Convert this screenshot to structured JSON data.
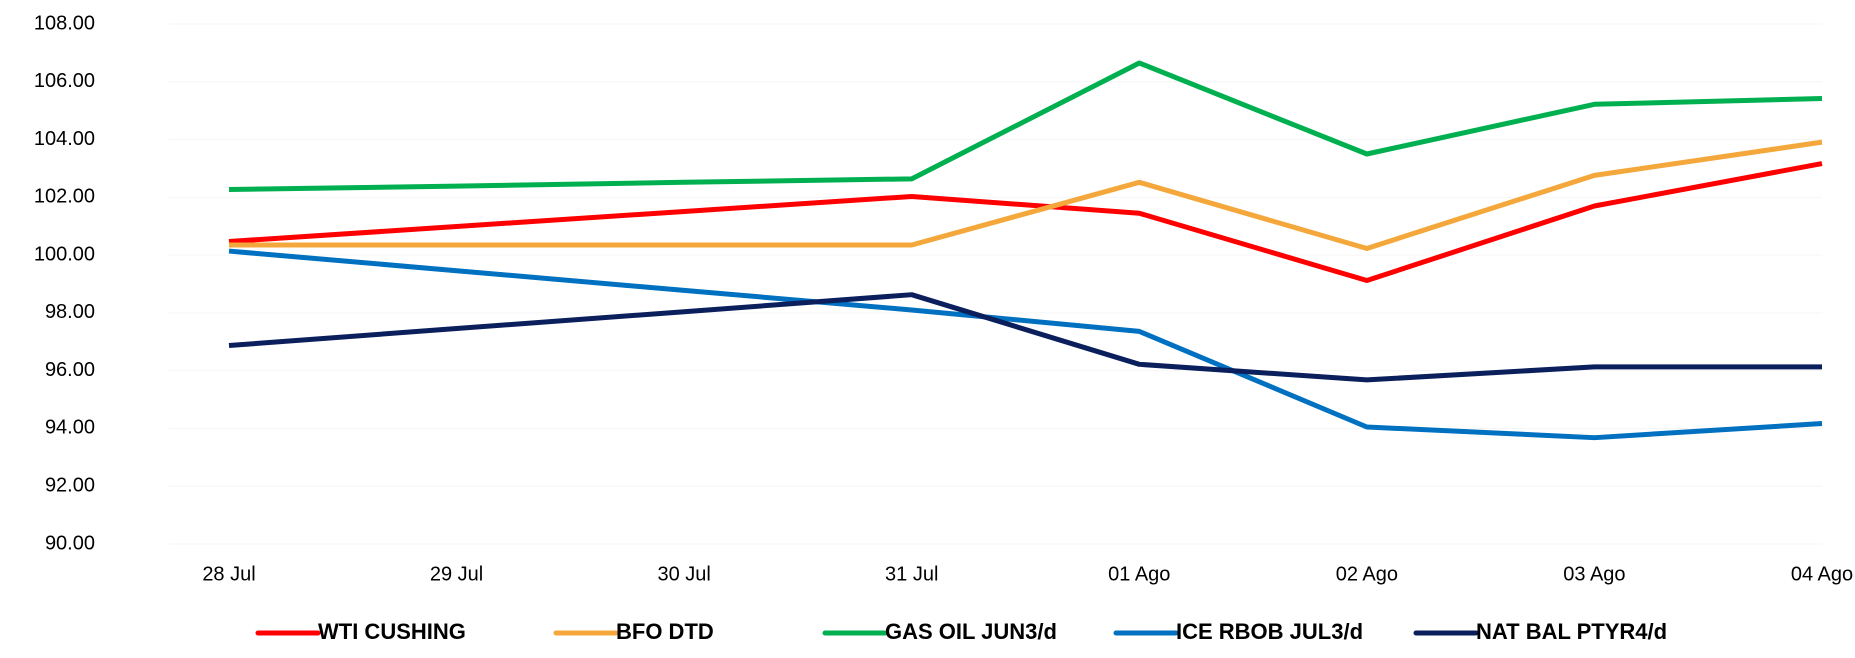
{
  "chart_data": {
    "type": "line",
    "categories": [
      "28 Jul",
      "29 Jul",
      "30 Jul",
      "31 Jul",
      "01 Ago",
      "02 Ago",
      "03 Ago",
      "04 Ago"
    ],
    "series": [
      {
        "name": "WTI CUSHING",
        "color": "#ff0000",
        "values": [
          100.47,
          100.99,
          101.51,
          102.03,
          101.45,
          99.12,
          101.7,
          103.17
        ]
      },
      {
        "name": "BFO DTD",
        "color": "#f4a73b",
        "values": [
          100.35,
          100.35,
          100.35,
          100.35,
          102.52,
          100.23,
          102.76,
          103.91
        ]
      },
      {
        "name": "GAS OIL JUN3/d",
        "color": "#00b050",
        "values": [
          102.27,
          102.39,
          102.52,
          102.64,
          106.65,
          103.5,
          105.22,
          105.42
        ]
      },
      {
        "name": "ICE RBOB JUL3/d",
        "color": "#0070c0",
        "values": [
          100.14,
          99.46,
          98.78,
          98.1,
          97.36,
          94.05,
          93.68,
          94.17
        ]
      },
      {
        "name": "NAT BAL PTYR4/d",
        "color": "#0a1f5c",
        "values": [
          96.87,
          97.46,
          98.04,
          98.63,
          96.22,
          95.68,
          96.13,
          96.13
        ]
      }
    ],
    "ylim": [
      90,
      108
    ],
    "yticks": [
      {
        "value": 90,
        "label": "90.00"
      },
      {
        "value": 92,
        "label": "92.00"
      },
      {
        "value": 94,
        "label": "94.00"
      },
      {
        "value": 96,
        "label": "96.00"
      },
      {
        "value": 98,
        "label": "98.00"
      },
      {
        "value": 100,
        "label": "100.00"
      },
      {
        "value": 102,
        "label": "102.00"
      },
      {
        "value": 104,
        "label": "104.00"
      },
      {
        "value": 106,
        "label": "106.00"
      },
      {
        "value": 108,
        "label": "108.00"
      }
    ],
    "legend": "bottom"
  }
}
